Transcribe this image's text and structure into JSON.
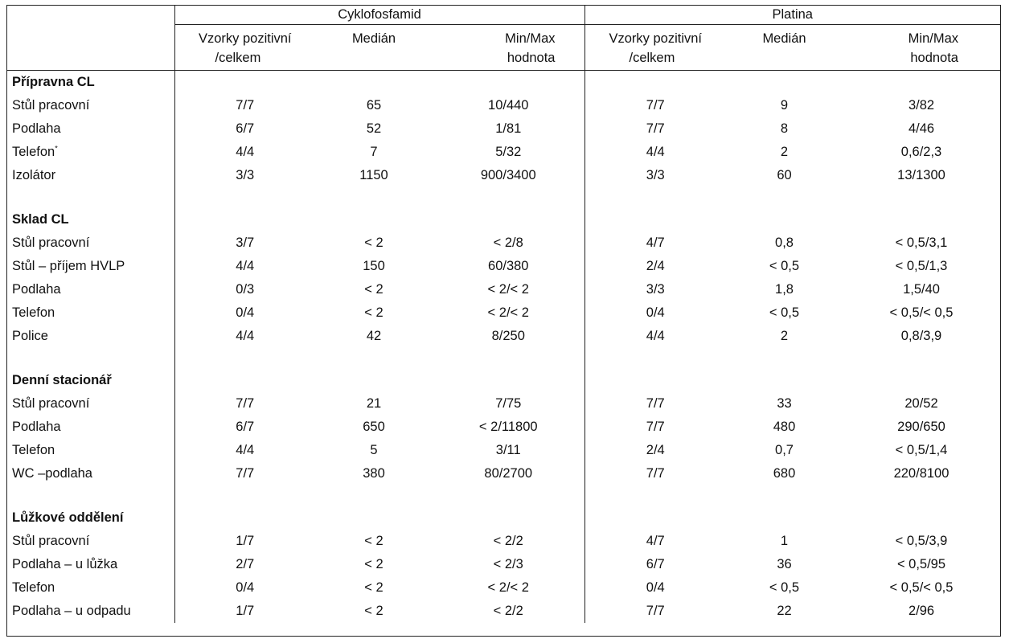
{
  "header": {
    "group_cyclo": "Cyklofosfamid",
    "group_platina": "Platina",
    "col_samples_line1": "Vzorky pozitivní",
    "col_samples_line2": "/celkem",
    "col_median": "Medián",
    "col_minmax_line1": "Min/Max",
    "col_minmax_line2": "hodnota"
  },
  "sections": [
    {
      "title": "Přípravna CL",
      "rows": [
        {
          "label": "Stůl pracovní",
          "sup": "",
          "c_pos": "7/7",
          "c_med": "65",
          "c_mm": "10/440",
          "p_pos": "7/7",
          "p_med": "9",
          "p_mm": "3/82"
        },
        {
          "label": "Podlaha",
          "sup": "",
          "c_pos": "6/7",
          "c_med": "52",
          "c_mm": "1/81",
          "p_pos": "7/7",
          "p_med": "8",
          "p_mm": "4/46"
        },
        {
          "label": "Telefon",
          "sup": "*",
          "c_pos": "4/4",
          "c_med": "7",
          "c_mm": "5/32",
          "p_pos": "4/4",
          "p_med": "2",
          "p_mm": "0,6/2,3"
        },
        {
          "label": "Izolátor",
          "sup": "",
          "c_pos": "3/3",
          "c_med": "1150",
          "c_mm": "900/3400",
          "p_pos": "3/3",
          "p_med": "60",
          "p_mm": "13/1300"
        }
      ]
    },
    {
      "title": "Sklad CL",
      "rows": [
        {
          "label": "Stůl pracovní",
          "sup": "",
          "c_pos": "3/7",
          "c_med": "< 2",
          "c_mm": "< 2/8",
          "p_pos": "4/7",
          "p_med": "0,8",
          "p_mm": "< 0,5/3,1"
        },
        {
          "label": "Stůl – příjem HVLP",
          "sup": "",
          "c_pos": "4/4",
          "c_med": "150",
          "c_mm": "60/380",
          "p_pos": "2/4",
          "p_med": "< 0,5",
          "p_mm": "< 0,5/1,3"
        },
        {
          "label": "Podlaha",
          "sup": "",
          "c_pos": "0/3",
          "c_med": "< 2",
          "c_mm": "< 2/< 2",
          "p_pos": "3/3",
          "p_med": "1,8",
          "p_mm": "1,5/40"
        },
        {
          "label": "Telefon",
          "sup": "",
          "c_pos": "0/4",
          "c_med": "< 2",
          "c_mm": "< 2/< 2",
          "p_pos": "0/4",
          "p_med": "< 0,5",
          "p_mm": "< 0,5/< 0,5"
        },
        {
          "label": "Police",
          "sup": "",
          "c_pos": "4/4",
          "c_med": "42",
          "c_mm": "8/250",
          "p_pos": "4/4",
          "p_med": "2",
          "p_mm": "0,8/3,9"
        }
      ]
    },
    {
      "title": "Denní stacionář",
      "rows": [
        {
          "label": "Stůl pracovní",
          "sup": "",
          "c_pos": "7/7",
          "c_med": "21",
          "c_mm": "7/75",
          "p_pos": "7/7",
          "p_med": "33",
          "p_mm": "20/52"
        },
        {
          "label": "Podlaha",
          "sup": "",
          "c_pos": "6/7",
          "c_med": "650",
          "c_mm": "< 2/11800",
          "p_pos": "7/7",
          "p_med": "480",
          "p_mm": "290/650"
        },
        {
          "label": "Telefon",
          "sup": "",
          "c_pos": "4/4",
          "c_med": "5",
          "c_mm": "3/11",
          "p_pos": "2/4",
          "p_med": "0,7",
          "p_mm": "< 0,5/1,4"
        },
        {
          "label": "WC –podlaha",
          "sup": "",
          "c_pos": "7/7",
          "c_med": "380",
          "c_mm": "80/2700",
          "p_pos": "7/7",
          "p_med": "680",
          "p_mm": "220/8100"
        }
      ]
    },
    {
      "title": "Lůžkové oddělení",
      "rows": [
        {
          "label": "Stůl pracovní",
          "sup": "",
          "c_pos": "1/7",
          "c_med": "< 2",
          "c_mm": "< 2/2",
          "p_pos": "4/7",
          "p_med": "1",
          "p_mm": "< 0,5/3,9"
        },
        {
          "label": "Podlaha – u lůžka",
          "sup": "",
          "c_pos": "2/7",
          "c_med": "< 2",
          "c_mm": "< 2/3",
          "p_pos": "6/7",
          "p_med": "36",
          "p_mm": "< 0,5/95"
        },
        {
          "label": "Telefon",
          "sup": "",
          "c_pos": "0/4",
          "c_med": "< 2",
          "c_mm": "< 2/< 2",
          "p_pos": "0/4",
          "p_med": "< 0,5",
          "p_mm": "< 0,5/< 0,5"
        },
        {
          "label": "Podlaha – u odpadu",
          "sup": "",
          "c_pos": "1/7",
          "c_med": "< 2",
          "c_mm": "< 2/2",
          "p_pos": "7/7",
          "p_med": "22",
          "p_mm": "2/96"
        }
      ]
    }
  ]
}
